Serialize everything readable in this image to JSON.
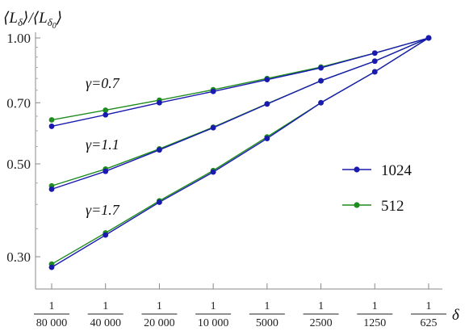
{
  "chart_data": {
    "type": "line",
    "title": "",
    "ylabel": "⟨L_δ⟩/⟨L_δ0⟩",
    "xlabel": "δ",
    "y_scale": "log",
    "ylim": [
      0.25,
      1.08
    ],
    "x_scale": "log",
    "x_ticks": [
      {
        "value": 1.25e-05,
        "num": "1",
        "den": "80 000"
      },
      {
        "value": 2.5e-05,
        "num": "1",
        "den": "40 000"
      },
      {
        "value": 5e-05,
        "num": "1",
        "den": "20 000"
      },
      {
        "value": 0.0001,
        "num": "1",
        "den": "10 000"
      },
      {
        "value": 0.0002,
        "num": "1",
        "den": "5000"
      },
      {
        "value": 0.0004,
        "num": "1",
        "den": "2500"
      },
      {
        "value": 0.0008,
        "num": "1",
        "den": "1250"
      },
      {
        "value": 0.0016,
        "num": "1",
        "den": "625"
      }
    ],
    "y_ticks": [
      "1.00",
      "0.70",
      "0.50",
      "0.30"
    ],
    "y_tick_values": [
      1.0,
      0.7,
      0.5,
      0.3
    ],
    "x": [
      1.25e-05,
      2.5e-05,
      5e-05,
      0.0001,
      0.0002,
      0.0004,
      0.0008,
      0.0016
    ],
    "curves": [
      {
        "gamma_label": "γ=0.7",
        "series": [
          {
            "name": "1024",
            "values": [
              0.615,
              0.655,
              0.7,
              0.745,
              0.795,
              0.848,
              0.92,
              1.0
            ]
          },
          {
            "name": "512",
            "values": [
              0.637,
              0.672,
              0.71,
              0.752,
              0.8,
              0.852,
              0.92,
              1.0
            ]
          }
        ]
      },
      {
        "gamma_label": "γ=1.1",
        "series": [
          {
            "name": "1024",
            "values": [
              0.435,
              0.48,
              0.54,
              0.61,
              0.695,
              0.79,
              0.88,
              1.0
            ]
          },
          {
            "name": "512",
            "values": [
              0.443,
              0.486,
              0.543,
              0.612,
              0.696,
              0.79,
              0.88,
              1.0
            ]
          }
        ]
      },
      {
        "gamma_label": "γ=1.7",
        "series": [
          {
            "name": "1024",
            "values": [
              0.283,
              0.338,
              0.405,
              0.478,
              0.575,
              0.7,
              0.83,
              1.0
            ]
          },
          {
            "name": "512",
            "values": [
              0.288,
              0.342,
              0.408,
              0.482,
              0.58,
              0.7,
              0.83,
              1.0
            ]
          }
        ]
      }
    ],
    "legend": [
      {
        "name": "1024",
        "color": "#1a1ab0"
      },
      {
        "name": "512",
        "color": "#1e8c1e"
      }
    ],
    "legend_position": "right",
    "grid": false
  }
}
